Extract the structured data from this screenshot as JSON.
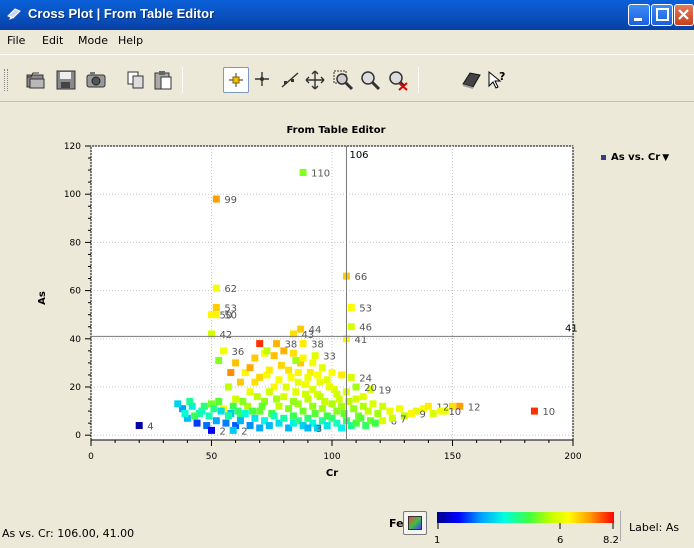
{
  "window": {
    "title": "Cross Plot | From Table Editor"
  },
  "menu": [
    "File",
    "Edit",
    "Mode",
    "Help"
  ],
  "toolbar_icons": [
    "open-folder-icon",
    "save-icon",
    "camera-icon",
    "copy-icon",
    "paste-icon",
    "select-mode-icon",
    "crosshair-icon",
    "line-fit-icon",
    "pan-icon",
    "zoom-region-icon",
    "zoom-icon",
    "zoom-reset-icon",
    "book-icon",
    "help-pointer-icon"
  ],
  "status": {
    "readout": "As vs. Cr: 106.00, 41.00",
    "color_variable": "Fe",
    "label_setting": "Label: As"
  },
  "legend": {
    "entry": "As vs. Cr"
  },
  "colorbar": {
    "min_label": "1",
    "mid_label": "6",
    "max_label": "8.2",
    "min": 1,
    "max": 8.2
  },
  "chart_data": {
    "type": "scatter",
    "title": "From Table Editor",
    "xlabel": "Cr",
    "ylabel": "As",
    "xlim": [
      0,
      200
    ],
    "ylim": [
      -2,
      120
    ],
    "xticks": [
      0,
      50,
      100,
      150,
      200
    ],
    "yticks": [
      0,
      20,
      40,
      60,
      80,
      100,
      120
    ],
    "grid": true,
    "legend_position": "top-right",
    "crosshair": {
      "x": 106,
      "y": 41,
      "x_label": "106",
      "y_label": "41"
    },
    "labeled_points": [
      {
        "x": 88,
        "y": 109,
        "label": "110",
        "fe": 5.2
      },
      {
        "x": 52,
        "y": 98,
        "label": "99",
        "fe": 7.2
      },
      {
        "x": 106,
        "y": 66,
        "label": "66",
        "fe": 6.8
      },
      {
        "x": 52,
        "y": 61,
        "label": "62",
        "fe": 6.2
      },
      {
        "x": 108,
        "y": 53,
        "label": "53",
        "fe": 6.3
      },
      {
        "x": 52,
        "y": 53,
        "label": "53",
        "fe": 6.8
      },
      {
        "x": 50,
        "y": 50,
        "label": "50",
        "fe": 6.4
      },
      {
        "x": 52,
        "y": 50,
        "label": "50",
        "fe": 6.4
      },
      {
        "x": 108,
        "y": 45,
        "label": "46",
        "fe": 5.9
      },
      {
        "x": 87,
        "y": 44,
        "label": "44",
        "fe": 6.8
      },
      {
        "x": 50,
        "y": 42,
        "label": "42",
        "fe": 5.8
      },
      {
        "x": 106,
        "y": 40,
        "label": "41",
        "fe": 6.4
      },
      {
        "x": 84,
        "y": 42,
        "label": "43",
        "fe": 6.6
      },
      {
        "x": 88,
        "y": 38,
        "label": "38",
        "fe": 6.5
      },
      {
        "x": 77,
        "y": 38,
        "label": "38",
        "fe": 7.0
      },
      {
        "x": 55,
        "y": 35,
        "label": "36",
        "fe": 6.2
      },
      {
        "x": 93,
        "y": 33,
        "label": "33",
        "fe": 6.0
      },
      {
        "x": 116,
        "y": 19,
        "label": "19",
        "fe": 5.9
      },
      {
        "x": 184,
        "y": 10,
        "label": "10",
        "fe": 7.9
      },
      {
        "x": 153,
        "y": 12,
        "label": "12",
        "fe": 7.2
      },
      {
        "x": 140,
        "y": 12,
        "label": "12",
        "fe": 6.5
      },
      {
        "x": 133,
        "y": 9,
        "label": "9",
        "fe": 6.4
      },
      {
        "x": 145,
        "y": 10,
        "label": "10",
        "fe": 6.2
      },
      {
        "x": 121,
        "y": 6,
        "label": "6",
        "fe": 6.0
      },
      {
        "x": 125,
        "y": 7,
        "label": "7",
        "fe": 5.8
      },
      {
        "x": 20,
        "y": 4,
        "label": "4",
        "fe": 1.2
      },
      {
        "x": 50,
        "y": 2,
        "label": "2",
        "fe": 1.8
      },
      {
        "x": 59,
        "y": 2,
        "label": "2",
        "fe": 3.2
      },
      {
        "x": 90,
        "y": 3,
        "label": "3",
        "fe": 3.0
      },
      {
        "x": 110,
        "y": 20,
        "label": "20",
        "fe": 5.4
      },
      {
        "x": 108,
        "y": 24,
        "label": "24",
        "fe": 5.9
      }
    ],
    "cluster_points": [
      [
        45,
        9,
        4.2
      ],
      [
        50,
        13,
        5.1
      ],
      [
        55,
        11,
        6.3
      ],
      [
        60,
        15,
        5.8
      ],
      [
        62,
        8,
        4.5
      ],
      [
        65,
        12,
        5.5
      ],
      [
        66,
        18,
        6.1
      ],
      [
        68,
        22,
        6.6
      ],
      [
        70,
        10,
        5.0
      ],
      [
        72,
        14,
        5.3
      ],
      [
        73,
        25,
        6.2
      ],
      [
        75,
        9,
        4.8
      ],
      [
        76,
        20,
        6.4
      ],
      [
        78,
        12,
        5.7
      ],
      [
        79,
        29,
        6.7
      ],
      [
        80,
        16,
        5.9
      ],
      [
        82,
        11,
        5.2
      ],
      [
        83,
        24,
        6.3
      ],
      [
        84,
        8,
        4.6
      ],
      [
        85,
        18,
        6.0
      ],
      [
        86,
        13,
        5.4
      ],
      [
        87,
        30,
        6.8
      ],
      [
        88,
        10,
        5.1
      ],
      [
        89,
        21,
        6.2
      ],
      [
        90,
        15,
        5.6
      ],
      [
        91,
        26,
        6.5
      ],
      [
        92,
        12,
        5.3
      ],
      [
        93,
        9,
        4.9
      ],
      [
        94,
        17,
        5.9
      ],
      [
        95,
        22,
        6.1
      ],
      [
        96,
        11,
        5.4
      ],
      [
        97,
        14,
        5.7
      ],
      [
        98,
        8,
        4.7
      ],
      [
        100,
        13,
        5.5
      ],
      [
        101,
        19,
        6.0
      ],
      [
        102,
        10,
        5.2
      ],
      [
        103,
        15,
        5.8
      ],
      [
        104,
        12,
        5.4
      ],
      [
        105,
        9,
        5.0
      ],
      [
        107,
        14,
        5.6
      ],
      [
        109,
        11,
        5.3
      ],
      [
        111,
        8,
        5.1
      ],
      [
        113,
        12,
        5.5
      ],
      [
        115,
        10,
        5.7
      ],
      [
        117,
        13,
        5.9
      ],
      [
        119,
        9,
        5.4
      ],
      [
        121,
        12,
        5.8
      ],
      [
        124,
        10,
        6.1
      ],
      [
        128,
        11,
        6.2
      ],
      [
        130,
        8,
        5.6
      ],
      [
        135,
        10,
        6.0
      ],
      [
        138,
        11,
        6.3
      ],
      [
        142,
        9,
        5.9
      ],
      [
        147,
        10,
        6.1
      ],
      [
        150,
        12,
        6.6
      ],
      [
        38,
        11,
        2.8
      ],
      [
        40,
        7,
        3.1
      ],
      [
        42,
        12,
        3.6
      ],
      [
        44,
        5,
        2.2
      ],
      [
        46,
        10,
        3.9
      ],
      [
        48,
        4,
        2.5
      ],
      [
        52,
        6,
        2.9
      ],
      [
        54,
        10,
        3.4
      ],
      [
        56,
        5,
        2.6
      ],
      [
        58,
        9,
        3.2
      ],
      [
        60,
        4,
        2.4
      ],
      [
        62,
        6,
        3.0
      ],
      [
        64,
        9,
        3.8
      ],
      [
        66,
        4,
        2.7
      ],
      [
        68,
        7,
        3.5
      ],
      [
        70,
        3,
        2.9
      ],
      [
        72,
        6,
        3.7
      ],
      [
        74,
        4,
        3.1
      ],
      [
        76,
        8,
        4.0
      ],
      [
        78,
        5,
        3.4
      ],
      [
        80,
        7,
        4.1
      ],
      [
        82,
        3,
        3.0
      ],
      [
        84,
        5,
        3.6
      ],
      [
        86,
        6,
        4.3
      ],
      [
        88,
        4,
        3.3
      ],
      [
        90,
        7,
        4.4
      ],
      [
        92,
        5,
        3.8
      ],
      [
        94,
        3,
        3.2
      ],
      [
        96,
        6,
        4.2
      ],
      [
        98,
        4,
        3.5
      ],
      [
        100,
        7,
        4.5
      ],
      [
        102,
        5,
        4.0
      ],
      [
        104,
        3,
        3.6
      ],
      [
        106,
        6,
        4.6
      ],
      [
        108,
        4,
        4.2
      ],
      [
        110,
        5,
        4.8
      ],
      [
        112,
        7,
        4.9
      ],
      [
        114,
        4,
        4.5
      ],
      [
        116,
        6,
        5.0
      ],
      [
        118,
        5,
        4.7
      ],
      [
        36,
        13,
        3.3
      ],
      [
        39,
        9,
        3.8
      ],
      [
        41,
        14,
        4.2
      ],
      [
        43,
        8,
        4.6
      ],
      [
        47,
        12,
        4.4
      ],
      [
        49,
        8,
        4.0
      ],
      [
        51,
        11,
        4.3
      ],
      [
        53,
        14,
        4.9
      ],
      [
        57,
        8,
        4.1
      ],
      [
        59,
        12,
        4.7
      ],
      [
        61,
        10,
        4.5
      ],
      [
        63,
        14,
        5.2
      ],
      [
        67,
        10,
        4.8
      ],
      [
        69,
        16,
        5.6
      ],
      [
        71,
        12,
        5.0
      ],
      [
        74,
        18,
        5.8
      ],
      [
        77,
        15,
        5.4
      ],
      [
        81,
        20,
        6.0
      ],
      [
        84,
        14,
        5.3
      ],
      [
        86,
        22,
        6.1
      ],
      [
        89,
        17,
        5.8
      ],
      [
        92,
        19,
        5.9
      ],
      [
        95,
        16,
        5.6
      ],
      [
        99,
        20,
        6.1
      ],
      [
        102,
        17,
        5.8
      ],
      [
        106,
        18,
        6.0
      ],
      [
        110,
        15,
        5.8
      ],
      [
        113,
        16,
        6.0
      ],
      [
        60,
        30,
        6.9
      ],
      [
        64,
        26,
        6.4
      ],
      [
        68,
        32,
        6.8
      ],
      [
        72,
        34,
        6.3
      ],
      [
        76,
        33,
        6.9
      ],
      [
        80,
        35,
        7.0
      ],
      [
        84,
        34,
        6.6
      ],
      [
        88,
        32,
        6.4
      ],
      [
        92,
        30,
        6.2
      ],
      [
        96,
        28,
        6.0
      ],
      [
        100,
        26,
        6.3
      ],
      [
        104,
        25,
        6.5
      ],
      [
        58,
        26,
        7.3
      ],
      [
        62,
        22,
        6.8
      ],
      [
        66,
        28,
        7.1
      ],
      [
        70,
        24,
        6.7
      ],
      [
        74,
        27,
        6.5
      ],
      [
        78,
        23,
        6.2
      ],
      [
        82,
        27,
        6.6
      ],
      [
        86,
        26,
        6.4
      ],
      [
        90,
        24,
        6.1
      ],
      [
        94,
        25,
        6.3
      ],
      [
        98,
        23,
        6.0
      ],
      [
        70,
        38,
        7.9
      ],
      [
        53,
        31,
        5.2
      ],
      [
        73,
        35,
        5.6
      ],
      [
        85,
        31,
        5.4
      ],
      [
        57,
        20,
        5.6
      ]
    ]
  }
}
